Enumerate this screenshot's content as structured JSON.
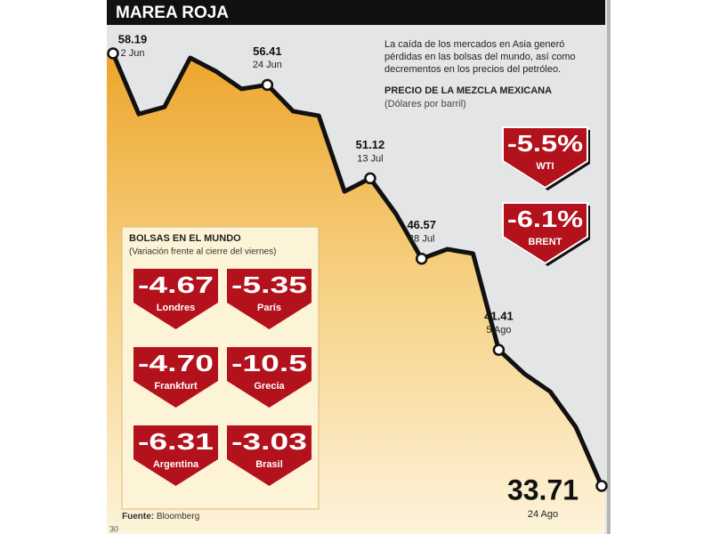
{
  "chart_data": {
    "type": "line",
    "title": "MAREA ROJA",
    "annotation": [
      "La caída de los mercados en Asia generó",
      "pérdidas en las bolsas del mundo, así como",
      "decrementos en los precios del petróleo."
    ],
    "subtitle": "PRECIO DE LA MEZCLA MEXICANA",
    "unit": "(Dólares por barril)",
    "categories": [
      "2 Jun",
      null,
      null,
      null,
      null,
      null,
      "24 Jun",
      null,
      null,
      null,
      "13 Jul",
      null,
      "28 Jul",
      null,
      null,
      "5 Ago",
      null,
      null,
      null,
      "24 Ago"
    ],
    "values": [
      58.19,
      54.76,
      55.16,
      57.94,
      57.18,
      56.18,
      56.41,
      54.92,
      54.66,
      50.38,
      51.12,
      49.12,
      46.57,
      47.11,
      46.86,
      41.41,
      40.05,
      39.05,
      37.03,
      33.71
    ],
    "color": "#111111"
  },
  "oil": {
    "categories": [
      "WTI",
      "BRENT"
    ],
    "values": [
      -5.5,
      -6.1
    ],
    "value_labels": [
      "-5.5%",
      "-6.1%"
    ],
    "color": "#b3121c"
  },
  "markets": {
    "title": "BOLSAS EN EL MUNDO",
    "subtitle": "(Variación frente al cierre del viernes)",
    "categories": [
      "Londres",
      "París",
      "Frankfurt",
      "Grecia",
      "Argentina",
      "Brasil"
    ],
    "values": [
      -4.67,
      -5.35,
      -4.7,
      -10.5,
      -6.31,
      -3.03
    ],
    "value_labels": [
      "-4.67",
      "-5.35",
      "-4.70",
      "-10.5",
      "-6.31",
      "-3.03"
    ],
    "color": "#b3121c"
  },
  "source": {
    "label": "Fuente:",
    "text": "Bloomberg"
  },
  "page_number": "30"
}
